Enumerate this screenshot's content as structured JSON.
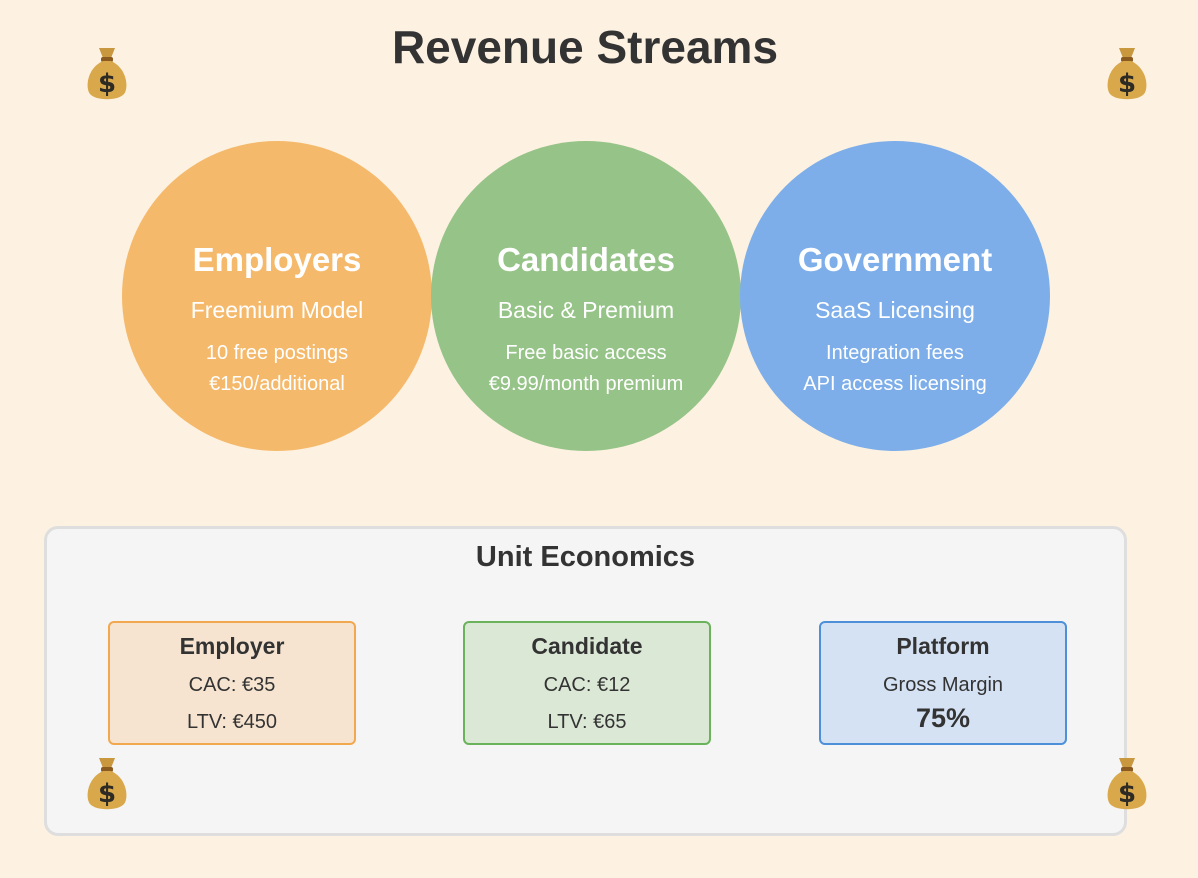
{
  "title": "Revenue Streams",
  "decoration_icon": "money-bag-icon",
  "colors": {
    "background": "#fdf2e2",
    "employers": "#f5b96c",
    "candidates": "#96c387",
    "government": "#7daee9"
  },
  "streams": [
    {
      "title": "Employers",
      "model": "Freemium Model",
      "details": [
        "10 free postings",
        "€150/additional"
      ]
    },
    {
      "title": "Candidates",
      "model": "Basic & Premium",
      "details": [
        "Free basic access",
        "€9.99/month premium"
      ]
    },
    {
      "title": "Government",
      "model": "SaaS Licensing",
      "details": [
        "Integration fees",
        "API access licensing"
      ]
    }
  ],
  "unit_economics": {
    "title": "Unit Economics",
    "cards": [
      {
        "title": "Employer",
        "line1": "CAC: €35",
        "line2": "LTV: €450"
      },
      {
        "title": "Candidate",
        "line1": "CAC: €12",
        "line2": "LTV: €65"
      },
      {
        "title": "Platform",
        "label": "Gross Margin",
        "value": "75%"
      }
    ]
  }
}
